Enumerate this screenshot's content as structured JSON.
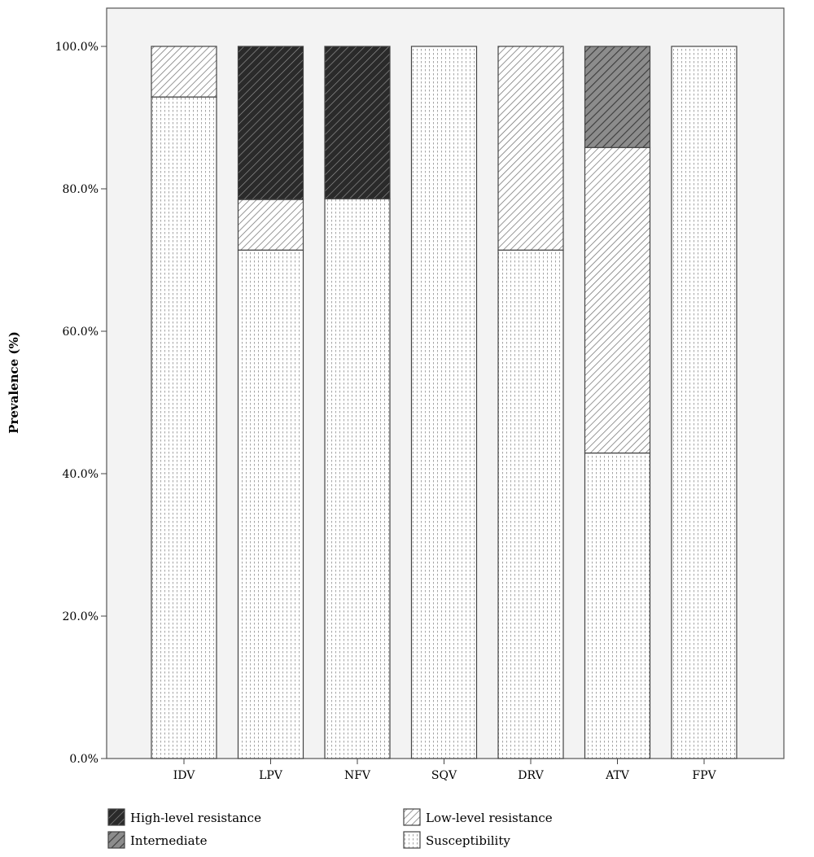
{
  "chart_data": {
    "type": "bar",
    "stacked": true,
    "percent_stacked": true,
    "title": "",
    "xlabel": "",
    "ylabel": "Prevalence (%)",
    "ylim": [
      0,
      100
    ],
    "yticks": [
      "0.0%",
      "20.0%",
      "40.0%",
      "60.0%",
      "80.0%",
      "100.0%"
    ],
    "ytick_values": [
      0,
      20,
      40,
      60,
      80,
      100
    ],
    "grid": false,
    "legend_position": "bottom",
    "categories": [
      "IDV",
      "LPV",
      "NFV",
      "SQV",
      "DRV",
      "ATV",
      "FPV"
    ],
    "series": [
      {
        "name": "Susceptibility",
        "values": [
          92.9,
          71.4,
          78.6,
          100,
          71.4,
          42.9,
          100
        ],
        "pattern": "dotted"
      },
      {
        "name": "Low-level resistance",
        "values": [
          7.1,
          7.1,
          0,
          0,
          28.6,
          42.9,
          0
        ],
        "pattern": "light-hatch"
      },
      {
        "name": "Internediate",
        "values": [
          0,
          0,
          0,
          0,
          0,
          14.2,
          0
        ],
        "pattern": "gray-hatch"
      },
      {
        "name": "High-level resistance",
        "values": [
          0,
          21.5,
          21.4,
          0,
          0,
          0,
          0
        ],
        "pattern": "dark-hatch"
      }
    ],
    "colors": {
      "plot_background": "#f3f3f3",
      "bar_background": "#ffffff",
      "high_level_fill": "#2a2a2a",
      "intermediate_fill": "#8c8c8c",
      "hatch_line": "#555555"
    }
  },
  "legend_order": [
    "High-level resistance",
    "Low-level resistance",
    "Internediate",
    "Susceptibility"
  ]
}
